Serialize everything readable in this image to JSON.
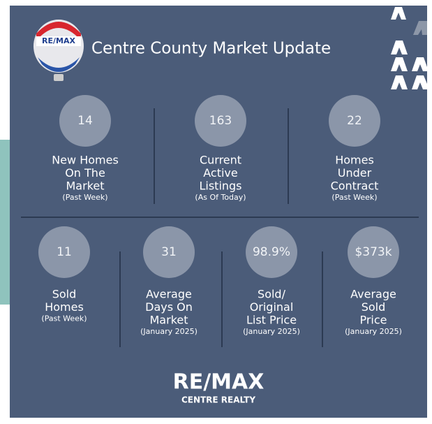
{
  "header": {
    "title": "Centre County Market Update"
  },
  "balloon": {
    "text": "RE/MAX"
  },
  "top_stats": [
    {
      "value": "14",
      "label": [
        "New Homes",
        "On The",
        "Market"
      ],
      "note": "(Past Week)"
    },
    {
      "value": "163",
      "label": [
        "Current",
        "Active",
        "Listings"
      ],
      "note": "(As Of Today)"
    },
    {
      "value": "22",
      "label": [
        "Homes",
        "Under",
        "Contract"
      ],
      "note": "(Past Week)"
    }
  ],
  "bottom_stats": [
    {
      "value": "11",
      "label": [
        "Sold",
        "Homes"
      ],
      "note": "(Past Week)"
    },
    {
      "value": "31",
      "label": [
        "Average",
        "Days On",
        "Market"
      ],
      "note": "(January 2025)"
    },
    {
      "value": "98.9%",
      "label": [
        "Sold/",
        "Original",
        "List Price"
      ],
      "note": "(January 2025)"
    },
    {
      "value": "$373k",
      "label": [
        "Average",
        "Sold",
        "Price"
      ],
      "note": "(January 2025)"
    }
  ],
  "footer": {
    "brand": "RE/MAX",
    "sub": "CENTRE REALTY"
  }
}
